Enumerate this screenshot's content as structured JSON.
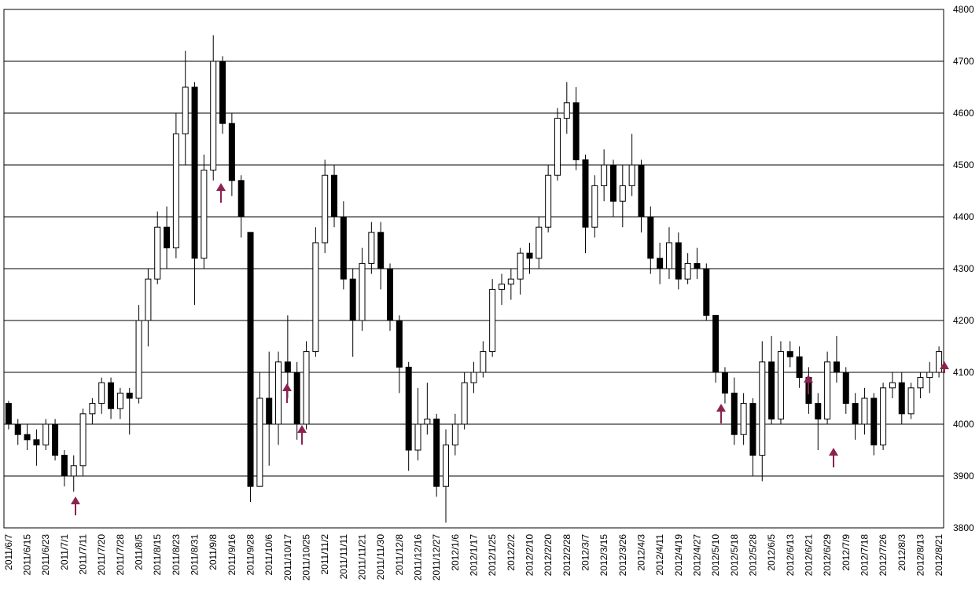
{
  "chart_data": {
    "type": "candlestick",
    "categories": [
      "2011/6/7",
      null,
      "2011/6/15",
      null,
      "2011/6/23",
      null,
      "2011/7/1",
      null,
      "2011/7/11",
      null,
      "2011/7/20",
      null,
      "2011/7/28",
      null,
      "2011/8/5",
      null,
      "2011/8/15",
      null,
      "2011/8/23",
      null,
      "2011/8/31",
      null,
      "2011/9/8",
      null,
      "2011/9/16",
      null,
      "2011/9/28",
      null,
      "2011/10/6",
      null,
      "2011/10/17",
      null,
      "2011/10/25",
      null,
      "2011/11/2",
      null,
      "2011/11/11",
      null,
      "2011/11/21",
      null,
      "2011/11/30",
      null,
      "2011/12/8",
      null,
      "2011/12/16",
      null,
      "2011/12/27",
      null,
      "2012/1/6",
      null,
      "2012/1/17",
      null,
      "2012/1/25",
      null,
      "2012/2/2",
      null,
      "2012/2/10",
      null,
      "2012/2/20",
      null,
      "2012/2/28",
      null,
      "2012/3/7",
      null,
      "2012/3/15",
      null,
      "2012/3/26",
      null,
      "2012/4/3",
      null,
      "2012/4/11",
      null,
      "2012/4/19",
      null,
      "2012/4/27",
      null,
      "2012/5/10",
      null,
      "2012/5/18",
      null,
      "2012/5/28",
      null,
      "2012/6/5",
      null,
      "2012/6/13",
      null,
      "2012/6/21",
      null,
      "2012/6/29",
      null,
      "2012/7/9",
      null,
      "2012/7/18",
      null,
      "2012/7/26",
      null,
      "2012/8/3",
      null,
      "2012/8/13",
      null,
      "2012/8/21"
    ],
    "open": [
      4040,
      4000,
      3980,
      3970,
      3960,
      4000,
      3940,
      3900,
      3920,
      4020,
      4040,
      4080,
      4030,
      4060,
      4050,
      4200,
      4280,
      4380,
      4340,
      4560,
      4650,
      4320,
      4490,
      4700,
      4580,
      4470,
      4370,
      3880,
      4050,
      4000,
      4120,
      4100,
      4000,
      4140,
      4350,
      4480,
      4400,
      4280,
      4200,
      4310,
      4370,
      4300,
      4200,
      4110,
      3950,
      4000,
      4010,
      3880,
      3960,
      4000,
      4080,
      4100,
      4140,
      4260,
      4270,
      4280,
      4330,
      4320,
      4380,
      4480,
      4590,
      4620,
      4510,
      4380,
      4460,
      4500,
      4430,
      4460,
      4500,
      4400,
      4320,
      4300,
      4350,
      4280,
      4310,
      4300,
      4210,
      4100,
      4060,
      3980,
      4040,
      3940,
      4120,
      4010,
      4140,
      4130,
      4090,
      4040,
      4010,
      4120,
      4100,
      4040,
      4000,
      4050,
      3960,
      4070,
      4080,
      4020,
      4070,
      4090,
      4100
    ],
    "high": [
      4045,
      4010,
      4000,
      3990,
      4010,
      4010,
      3950,
      3940,
      4030,
      4050,
      4090,
      4090,
      4070,
      4070,
      4230,
      4300,
      4410,
      4420,
      4600,
      4720,
      4660,
      4520,
      4750,
      4710,
      4600,
      4480,
      4370,
      4100,
      4140,
      4140,
      4210,
      4120,
      4160,
      4380,
      4510,
      4500,
      4430,
      4300,
      4340,
      4390,
      4390,
      4310,
      4210,
      4120,
      4070,
      4080,
      4020,
      3990,
      4020,
      4100,
      4120,
      4160,
      4280,
      4290,
      4300,
      4340,
      4350,
      4400,
      4500,
      4610,
      4660,
      4650,
      4520,
      4480,
      4530,
      4510,
      4500,
      4560,
      4510,
      4420,
      4350,
      4380,
      4370,
      4330,
      4340,
      4310,
      4210,
      4110,
      4090,
      4060,
      4050,
      4160,
      4170,
      4160,
      4160,
      4150,
      4110,
      4060,
      4140,
      4170,
      4110,
      4060,
      4070,
      4060,
      4080,
      4100,
      4100,
      4080,
      4100,
      4120,
      4150
    ],
    "low": [
      3990,
      3960,
      3950,
      3920,
      3950,
      3930,
      3880,
      3870,
      3900,
      4000,
      4020,
      4010,
      4010,
      3980,
      4040,
      4150,
      4270,
      4300,
      4320,
      4500,
      4230,
      4300,
      4470,
      4560,
      4440,
      4360,
      3850,
      3880,
      3920,
      3960,
      4050,
      3970,
      3990,
      4130,
      4330,
      4380,
      4260,
      4130,
      4180,
      4290,
      4260,
      4180,
      4060,
      3910,
      3930,
      3980,
      3860,
      3810,
      3940,
      3990,
      4060,
      4090,
      4130,
      4230,
      4240,
      4250,
      4290,
      4300,
      4370,
      4470,
      4560,
      4490,
      4330,
      4360,
      4430,
      4400,
      4380,
      4440,
      4370,
      4290,
      4270,
      4280,
      4260,
      4270,
      4280,
      4200,
      4080,
      4040,
      3960,
      3960,
      3900,
      3890,
      4000,
      4000,
      4110,
      4070,
      4020,
      3950,
      4000,
      4080,
      4020,
      3970,
      3980,
      3940,
      3950,
      4050,
      4000,
      4010,
      4050,
      4060,
      4090
    ],
    "close": [
      4000,
      3980,
      3970,
      3960,
      4000,
      3940,
      3900,
      3920,
      4020,
      4040,
      4080,
      4030,
      4060,
      4050,
      4200,
      4280,
      4380,
      4340,
      4560,
      4650,
      4320,
      4490,
      4700,
      4580,
      4470,
      4400,
      3880,
      4050,
      4000,
      4120,
      4100,
      4000,
      4140,
      4350,
      4480,
      4400,
      4280,
      4200,
      4310,
      4370,
      4300,
      4200,
      4110,
      3950,
      4000,
      4010,
      3880,
      3960,
      4000,
      4080,
      4100,
      4140,
      4260,
      4270,
      4280,
      4330,
      4320,
      4380,
      4480,
      4590,
      4620,
      4510,
      4380,
      4460,
      4500,
      4430,
      4460,
      4500,
      4400,
      4320,
      4300,
      4350,
      4280,
      4310,
      4300,
      4210,
      4100,
      4060,
      3980,
      4040,
      3940,
      4120,
      4010,
      4140,
      4130,
      4090,
      4040,
      4010,
      4120,
      4100,
      4040,
      4000,
      4050,
      3960,
      4070,
      4080,
      4020,
      4070,
      4090,
      4100,
      4140
    ],
    "up_color": "#ffffff",
    "down_color": "#000000",
    "ylim": [
      3800,
      4800
    ],
    "yticks": [
      3800,
      3900,
      4000,
      4100,
      4200,
      4300,
      4400,
      4500,
      4600,
      4700,
      4800
    ],
    "grid": true
  }
}
